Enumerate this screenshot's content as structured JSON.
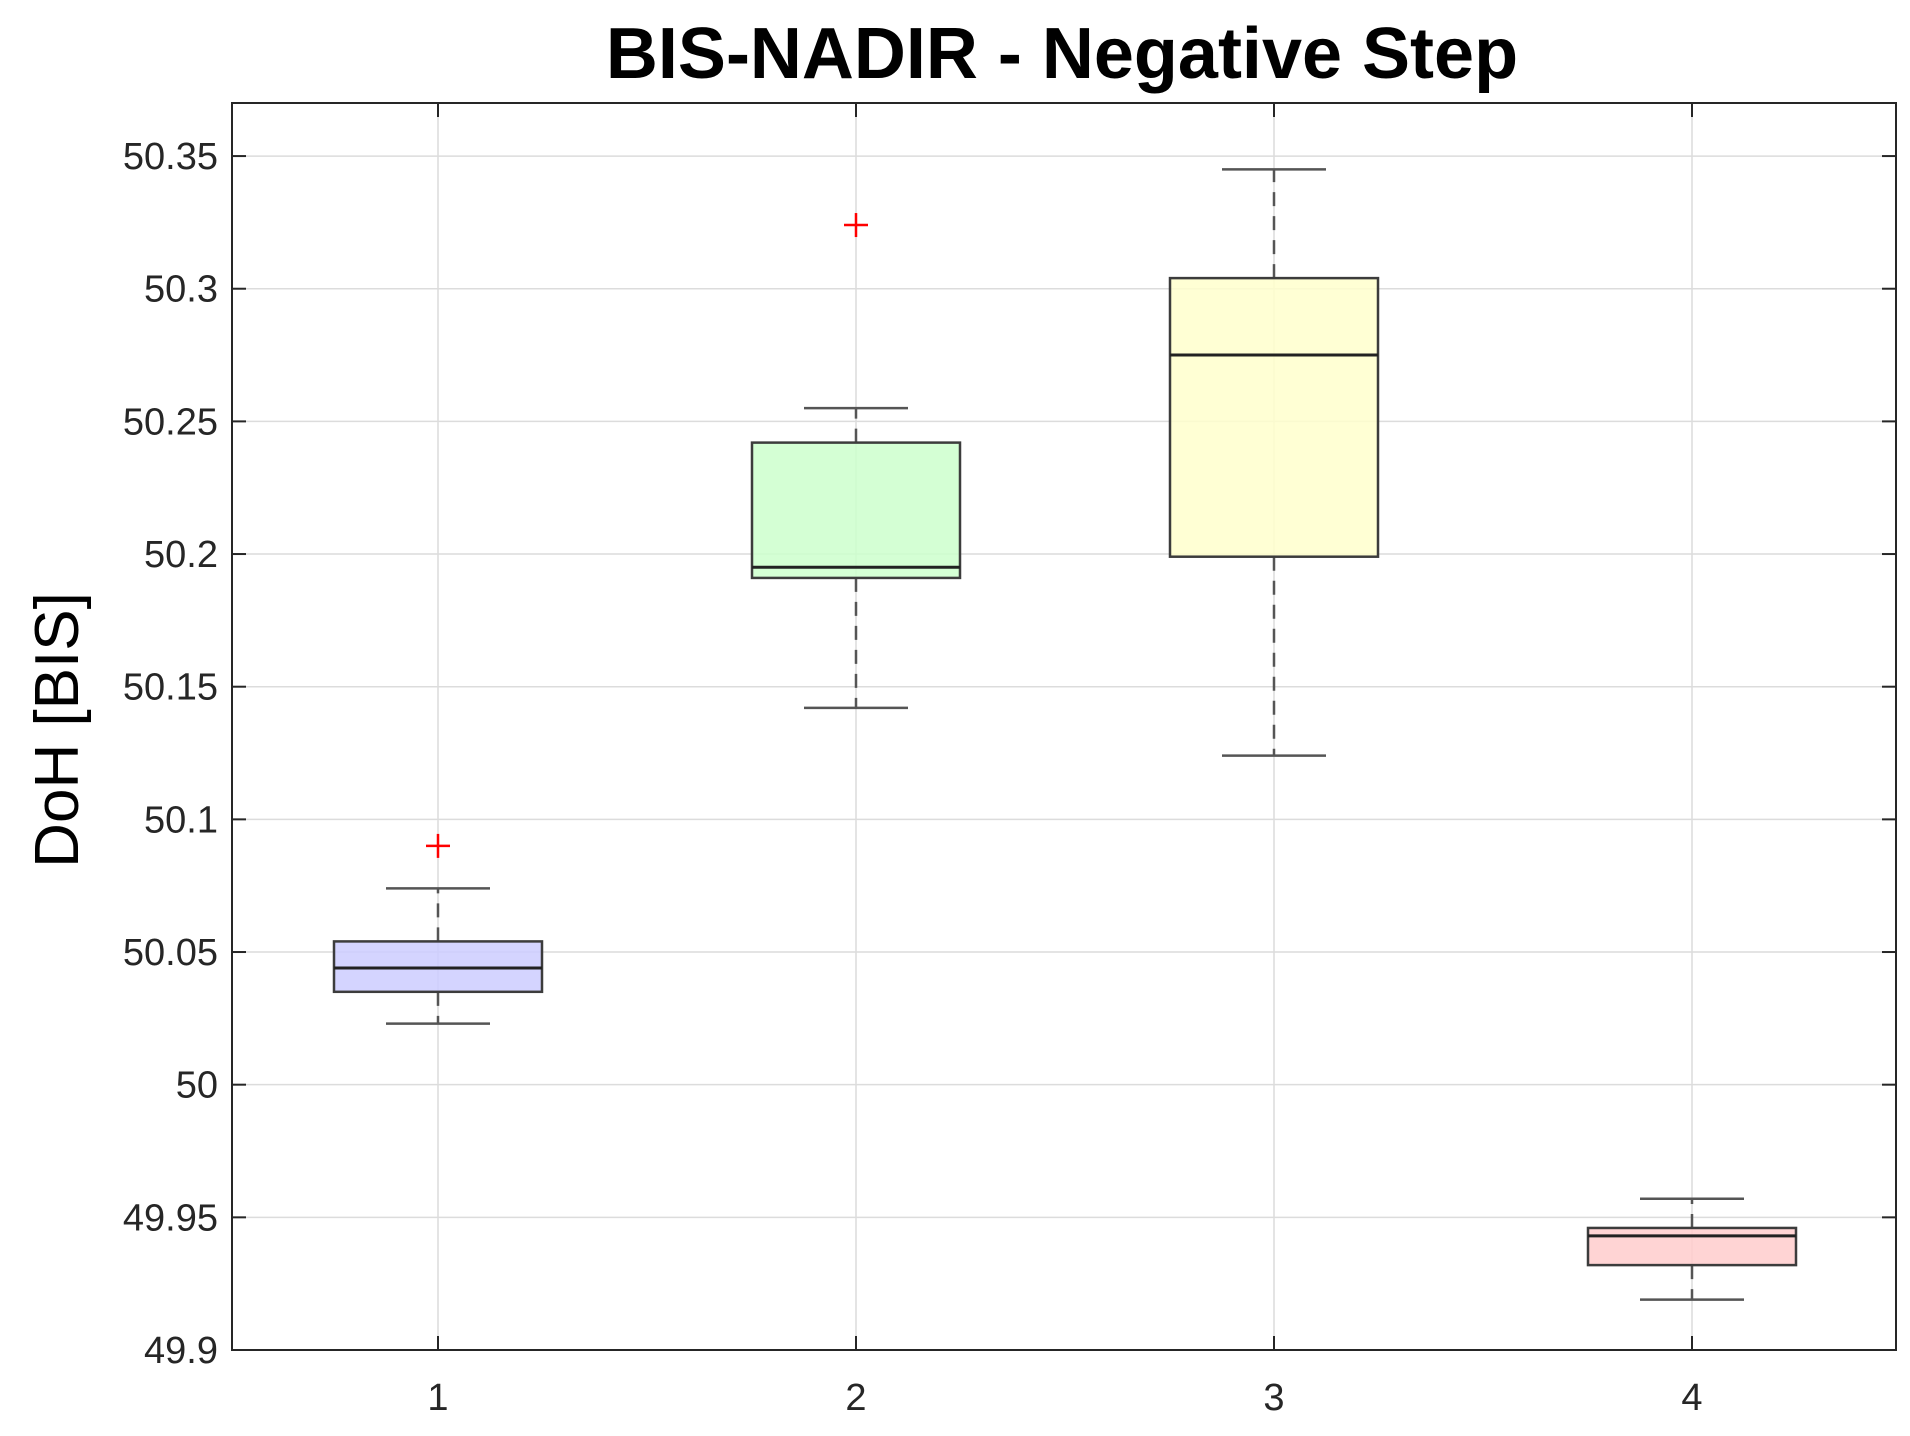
{
  "chart_data": {
    "type": "boxplot",
    "title": "BIS-NADIR - Negative Step",
    "xlabel": "",
    "ylabel": "DoH [BIS]",
    "categories": [
      "1",
      "2",
      "3",
      "4"
    ],
    "ylim": [
      49.9,
      50.37
    ],
    "yticks": [
      49.9,
      49.95,
      50,
      50.05,
      50.1,
      50.15,
      50.2,
      50.25,
      50.3,
      50.35
    ],
    "ytick_labels": [
      "49.9",
      "49.95",
      "50",
      "50.05",
      "50.1",
      "50.15",
      "50.2",
      "50.25",
      "50.3",
      "50.35"
    ],
    "grid": true,
    "boxes": [
      {
        "category": "1",
        "whisker_low": 50.023,
        "q1": 50.035,
        "median": 50.044,
        "q3": 50.054,
        "whisker_high": 50.074,
        "outliers": [
          50.09
        ],
        "color": "#ccccff"
      },
      {
        "category": "2",
        "whisker_low": 50.142,
        "q1": 50.191,
        "median": 50.195,
        "q3": 50.242,
        "whisker_high": 50.255,
        "outliers": [
          50.324
        ],
        "color": "#ccffcc"
      },
      {
        "category": "3",
        "whisker_low": 50.124,
        "q1": 50.199,
        "median": 50.275,
        "q3": 50.304,
        "whisker_high": 50.345,
        "outliers": [],
        "color": "#ffffcc"
      },
      {
        "category": "4",
        "whisker_low": 49.919,
        "q1": 49.932,
        "median": 49.943,
        "q3": 49.946,
        "whisker_high": 49.957,
        "outliers": [],
        "color": "#ffcccc"
      }
    ],
    "outlier_color": "#ff0000"
  }
}
